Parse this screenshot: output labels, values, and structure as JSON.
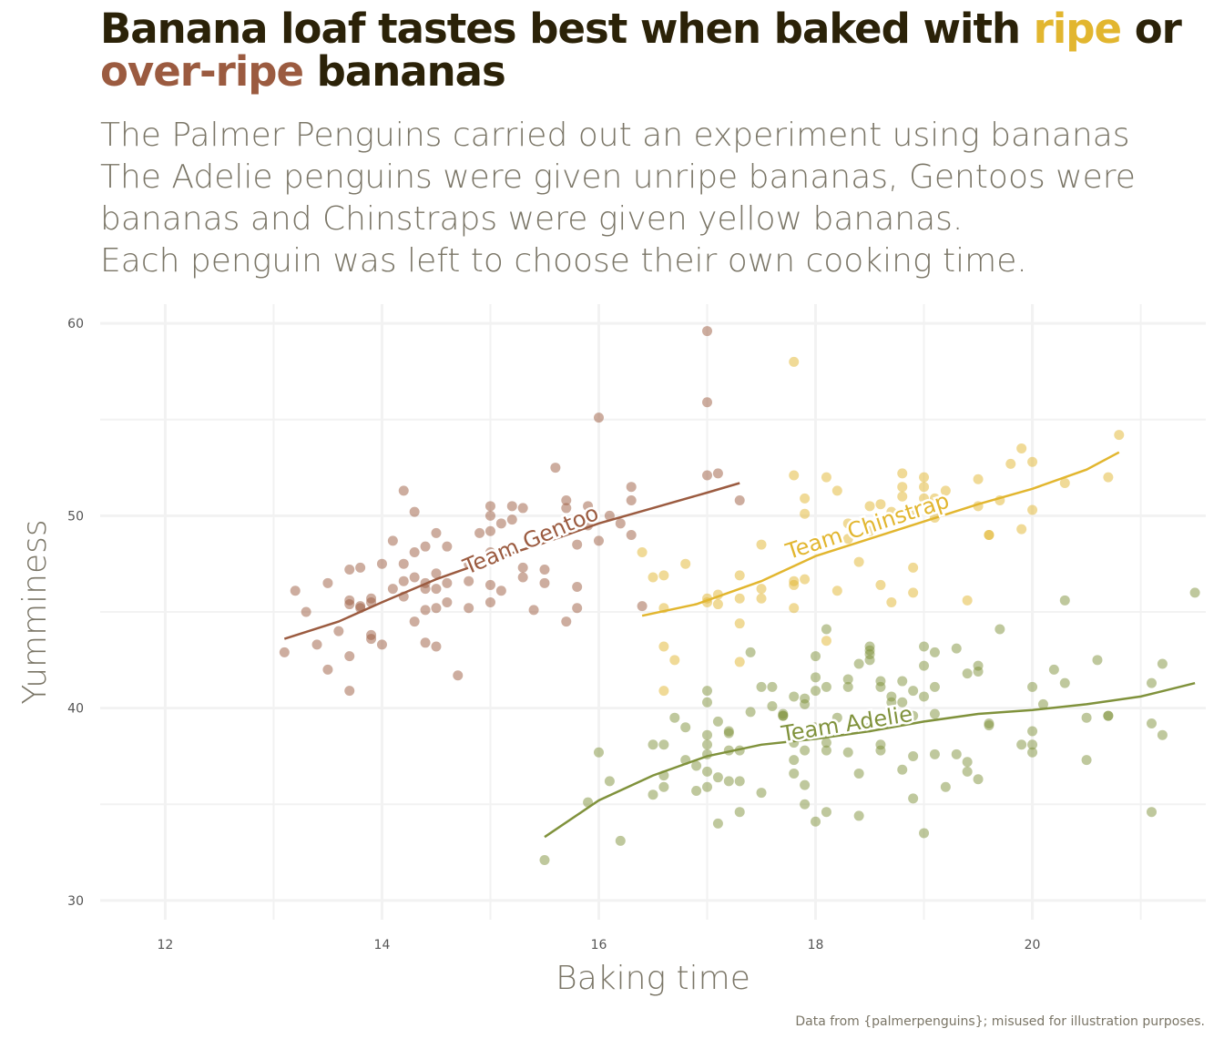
{
  "title": {
    "part1": "Banana loaf tastes best when baked with ",
    "ripe": "ripe",
    "part2": " or",
    "overripe": "over-ripe",
    "part3": " bananas"
  },
  "subtitle": [
    "The Palmer Penguins carried out an experiment using bananas",
    "The Adelie penguins were given unripe bananas, Gentoos were",
    "bananas and Chinstraps were given yellow bananas.",
    "Each penguin was left to choose their own cooking time."
  ],
  "caption": "Data from {palmerpenguins}; misused for illustration purposes.",
  "colors": {
    "gentoo": "#9b5b40",
    "chinstrap": "#e2b62f",
    "adelie": "#80923c",
    "text": "#7a7566",
    "title": "#2b2208"
  },
  "chart_data": {
    "type": "scatter",
    "xlabel": "Baking time",
    "ylabel": "Yumminess",
    "xlim": [
      11.4,
      21.6
    ],
    "ylim": [
      29,
      61
    ],
    "xticks": [
      12,
      14,
      16,
      18,
      20
    ],
    "yticks": [
      30,
      40,
      50,
      60
    ],
    "grid": true,
    "legend": "none",
    "series": [
      {
        "name": "Team Gentoo",
        "key": "gentoo",
        "color": "#9b5b40",
        "x": [
          13.1,
          13.2,
          13.3,
          13.4,
          13.5,
          13.5,
          13.6,
          13.7,
          13.7,
          13.7,
          13.7,
          13.7,
          13.8,
          13.8,
          13.8,
          13.9,
          13.9,
          13.9,
          13.9,
          14.0,
          14.0,
          14.1,
          14.1,
          14.2,
          14.2,
          14.2,
          14.2,
          14.3,
          14.3,
          14.3,
          14.3,
          14.4,
          14.4,
          14.4,
          14.4,
          14.4,
          14.5,
          14.5,
          14.5,
          14.5,
          14.5,
          14.6,
          14.6,
          14.6,
          14.7,
          14.8,
          14.8,
          14.8,
          14.9,
          15.0,
          15.0,
          15.0,
          15.0,
          15.0,
          15.0,
          15.0,
          15.1,
          15.1,
          15.2,
          15.2,
          15.3,
          15.3,
          15.3,
          15.4,
          15.5,
          15.5,
          15.6,
          15.7,
          15.7,
          15.7,
          15.8,
          15.8,
          15.8,
          15.9,
          15.9,
          16.0,
          16.0,
          16.1,
          16.2,
          16.3,
          16.3,
          16.3,
          16.4,
          17.0,
          17.0,
          17.0,
          17.1,
          17.3
        ],
        "y": [
          42.9,
          46.1,
          45.0,
          43.3,
          42.0,
          46.5,
          44.0,
          45.4,
          45.6,
          42.7,
          40.9,
          47.2,
          45.3,
          45.2,
          47.3,
          45.5,
          45.7,
          43.6,
          43.8,
          43.3,
          47.5,
          46.2,
          48.7,
          45.8,
          47.5,
          46.6,
          51.3,
          44.5,
          46.8,
          48.1,
          50.2,
          43.4,
          46.5,
          46.2,
          45.1,
          48.4,
          46.2,
          45.2,
          49.1,
          43.2,
          47.0,
          45.5,
          46.5,
          48.4,
          41.7,
          47.5,
          46.6,
          45.2,
          49.1,
          48.1,
          47.7,
          46.4,
          45.5,
          49.2,
          50.5,
          50.0,
          49.6,
          46.1,
          49.8,
          50.5,
          46.8,
          47.3,
          50.4,
          45.1,
          47.2,
          46.5,
          52.5,
          50.8,
          50.4,
          44.5,
          46.3,
          48.5,
          45.2,
          49.5,
          50.5,
          55.1,
          48.7,
          50.0,
          49.6,
          51.5,
          50.8,
          49.0,
          45.3,
          59.6,
          55.9,
          52.1,
          52.2,
          50.8
        ],
        "trend": [
          [
            13.1,
            43.6
          ],
          [
            13.6,
            44.5
          ],
          [
            14.0,
            45.5
          ],
          [
            14.5,
            46.7
          ],
          [
            15.0,
            47.7
          ],
          [
            15.5,
            48.6
          ],
          [
            16.0,
            49.6
          ],
          [
            16.5,
            50.4
          ],
          [
            17.0,
            51.2
          ],
          [
            17.3,
            51.7
          ]
        ],
        "label": "Team Gentoo",
        "label_at": [
          15.4,
          48.4
        ],
        "label_angle": -23
      },
      {
        "name": "Team Chinstrap",
        "key": "chinstrap",
        "color": "#e2b62f",
        "x": [
          16.4,
          16.5,
          16.6,
          16.6,
          16.6,
          16.7,
          16.8,
          17.0,
          17.0,
          17.1,
          17.3,
          17.3,
          17.3,
          17.3,
          17.5,
          17.5,
          17.8,
          17.8,
          17.8,
          17.8,
          17.9,
          17.9,
          17.9,
          18.1,
          18.2,
          18.2,
          18.3,
          18.4,
          18.5,
          18.5,
          18.6,
          18.6,
          18.7,
          18.7,
          18.8,
          18.8,
          18.8,
          18.9,
          18.9,
          19.0,
          19.0,
          19.0,
          19.1,
          19.1,
          19.2,
          19.4,
          19.5,
          19.5,
          19.6,
          19.6,
          19.7,
          19.8,
          19.9,
          19.9,
          20.0,
          20.0,
          20.3,
          20.7,
          20.8,
          17.5,
          17.8,
          18.1,
          18.9,
          17.1,
          18.3,
          16.6
        ],
        "y": [
          48.1,
          46.8,
          46.9,
          45.2,
          43.2,
          42.5,
          47.5,
          45.7,
          45.5,
          45.9,
          46.9,
          45.7,
          44.4,
          42.4,
          48.5,
          46.2,
          46.4,
          46.6,
          45.2,
          58.0,
          46.7,
          50.9,
          50.1,
          52.0,
          51.3,
          46.1,
          49.6,
          47.6,
          50.5,
          49.2,
          50.6,
          46.4,
          45.5,
          50.2,
          52.2,
          51.0,
          51.5,
          50.1,
          46.0,
          51.5,
          52.0,
          50.9,
          50.9,
          49.9,
          51.3,
          45.6,
          50.5,
          51.9,
          49.0,
          49.0,
          50.8,
          52.7,
          53.5,
          49.3,
          52.8,
          50.3,
          51.7,
          52.0,
          54.2,
          45.7,
          52.1,
          43.5,
          47.3,
          45.4,
          48.8,
          40.9
        ],
        "trend": [
          [
            16.4,
            44.8
          ],
          [
            16.9,
            45.4
          ],
          [
            17.5,
            46.6
          ],
          [
            18.0,
            47.9
          ],
          [
            18.5,
            48.8
          ],
          [
            19.0,
            49.7
          ],
          [
            19.5,
            50.6
          ],
          [
            20.0,
            51.4
          ],
          [
            20.5,
            52.4
          ],
          [
            20.8,
            53.3
          ]
        ],
        "label": "Team Chinstrap",
        "label_at": [
          18.5,
          49.1
        ],
        "label_angle": -18
      },
      {
        "name": "Team Adelie",
        "key": "adelie",
        "color": "#80923c",
        "x": [
          15.5,
          16.0,
          16.2,
          16.5,
          16.5,
          16.6,
          16.7,
          16.8,
          16.9,
          16.9,
          17.0,
          17.0,
          17.0,
          17.0,
          17.0,
          17.1,
          17.1,
          17.1,
          17.2,
          17.2,
          17.2,
          17.3,
          17.3,
          17.4,
          17.5,
          17.5,
          17.6,
          17.6,
          17.7,
          17.7,
          17.8,
          17.8,
          17.8,
          17.9,
          17.9,
          17.9,
          17.9,
          18.0,
          18.0,
          18.0,
          18.1,
          18.1,
          18.1,
          18.2,
          18.3,
          18.3,
          18.3,
          18.4,
          18.4,
          18.5,
          18.5,
          18.5,
          18.6,
          18.6,
          18.6,
          18.6,
          18.7,
          18.7,
          18.8,
          18.8,
          18.9,
          18.9,
          18.9,
          18.9,
          19.0,
          19.0,
          19.0,
          19.1,
          19.1,
          19.1,
          19.2,
          19.3,
          19.4,
          19.5,
          19.5,
          19.5,
          19.6,
          19.7,
          20.0,
          20.0,
          20.0,
          20.0,
          20.1,
          20.3,
          20.3,
          20.7,
          21.1,
          21.1,
          21.2,
          16.6,
          17.3,
          17.8,
          18.0,
          18.5,
          19.4,
          20.5,
          15.9,
          16.1,
          16.6,
          16.8,
          17.0,
          17.4,
          17.7,
          17.9,
          18.1,
          18.4,
          18.8,
          19.0,
          19.1,
          19.4,
          19.6,
          19.9,
          20.2,
          20.5,
          20.6,
          20.7,
          21.1,
          21.2,
          21.5,
          17.0,
          17.2,
          18.0,
          18.5,
          19.3,
          18.1
        ],
        "y": [
          32.1,
          37.7,
          33.1,
          38.1,
          35.5,
          36.5,
          39.5,
          37.3,
          35.7,
          37.0,
          40.3,
          38.1,
          37.6,
          36.7,
          35.9,
          36.4,
          39.3,
          34.0,
          37.8,
          38.7,
          38.8,
          37.8,
          36.2,
          39.8,
          35.6,
          41.1,
          41.1,
          40.1,
          39.7,
          39.6,
          36.6,
          37.3,
          40.6,
          36.0,
          40.5,
          37.8,
          35.0,
          41.6,
          39.0,
          40.9,
          38.2,
          34.6,
          41.1,
          39.5,
          37.7,
          41.1,
          41.5,
          42.3,
          36.6,
          43.2,
          42.5,
          39.0,
          41.1,
          41.4,
          37.8,
          38.1,
          40.3,
          40.6,
          41.4,
          40.3,
          40.9,
          39.6,
          35.3,
          37.5,
          43.2,
          40.6,
          42.2,
          37.6,
          39.7,
          41.1,
          35.9,
          37.6,
          36.7,
          42.2,
          41.9,
          36.3,
          39.2,
          44.1,
          41.1,
          37.7,
          38.1,
          38.8,
          40.2,
          45.6,
          41.3,
          39.6,
          39.2,
          41.3,
          42.3,
          35.9,
          34.6,
          38.2,
          42.7,
          42.8,
          37.2,
          37.3,
          35.1,
          36.2,
          38.1,
          39.0,
          40.9,
          42.9,
          39.6,
          40.2,
          44.1,
          34.4,
          36.8,
          33.5,
          42.9,
          41.8,
          39.1,
          38.1,
          42.0,
          39.5,
          42.5,
          39.6,
          34.6,
          38.6,
          46.0,
          38.6,
          36.2,
          34.1,
          43.0,
          43.1,
          37.8
        ],
        "trend": [
          [
            15.5,
            33.3
          ],
          [
            16.0,
            35.2
          ],
          [
            16.5,
            36.5
          ],
          [
            17.0,
            37.5
          ],
          [
            17.5,
            38.1
          ],
          [
            18.0,
            38.4
          ],
          [
            18.5,
            38.8
          ],
          [
            19.0,
            39.3
          ],
          [
            19.5,
            39.7
          ],
          [
            20.0,
            39.9
          ],
          [
            20.5,
            40.2
          ],
          [
            21.0,
            40.6
          ],
          [
            21.5,
            41.3
          ]
        ],
        "label": "Team Adelie",
        "label_at": [
          18.3,
          38.8
        ],
        "label_angle": -9
      }
    ]
  }
}
